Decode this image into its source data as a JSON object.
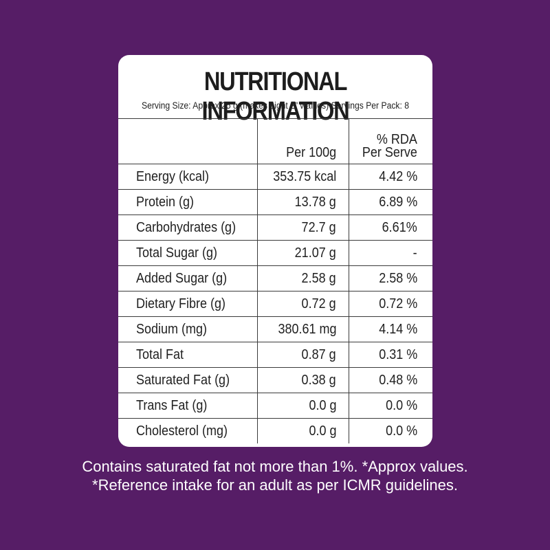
{
  "panel": {
    "title": "NUTRITIONAL INFORMATION",
    "serving": "Serving Size: Approx 25 g (makes eight  2\" waffles) Servings Per Pack: 8"
  },
  "table": {
    "headers": [
      "",
      "Per 100g",
      "% RDA",
      "Per Serve"
    ],
    "rows": [
      [
        "Energy (kcal)",
        "353.75  kcal",
        "4.42 %"
      ],
      [
        "Protein (g)",
        "13.78  g",
        "6.89 %"
      ],
      [
        "Carbohydrates (g)",
        "72.7  g",
        "6.61%"
      ],
      [
        "Total Sugar (g)",
        "21.07 g",
        "-"
      ],
      [
        "Added Sugar (g)",
        "2.58 g",
        "2.58 %"
      ],
      [
        "Dietary Fibre (g)",
        "0.72 g",
        "0.72 %"
      ],
      [
        "Sodium (mg)",
        "380.61 mg",
        "4.14 %"
      ],
      [
        "Total Fat",
        "0.87 g",
        "0.31 %"
      ],
      [
        "Saturated Fat (g)",
        "0.38 g",
        "0.48 %"
      ],
      [
        "Trans Fat (g)",
        "0.0 g",
        "0.0 %"
      ],
      [
        "Cholesterol (mg)",
        "0.0 g",
        "0.0 %"
      ]
    ]
  },
  "footer": {
    "line1": "Contains saturated fat not more than 1%. *Approx values.",
    "line2": "*Reference intake for an adult as per ICMR guidelines."
  },
  "colors": {
    "background": "#561d66",
    "card": "#ffffff"
  }
}
